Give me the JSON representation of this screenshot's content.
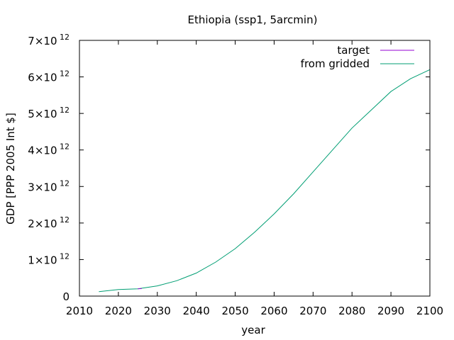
{
  "chart_data": {
    "type": "line",
    "title": "Ethiopia (ssp1, 5arcmin)",
    "xlabel": "year",
    "ylabel": "GDP [PPP 2005 Int $]",
    "xlim": [
      2010,
      2100
    ],
    "ylim": [
      0,
      7000000000000.0
    ],
    "x_ticks": [
      "2010",
      "2020",
      "2030",
      "2040",
      "2050",
      "2060",
      "2070",
      "2080",
      "2090",
      "2100"
    ],
    "y_ticks": [
      {
        "value": 0,
        "mant": "0",
        "exp": ""
      },
      {
        "value": 1000000000000.0,
        "mant": "1×10",
        "exp": "12"
      },
      {
        "value": 2000000000000.0,
        "mant": "2×10",
        "exp": "12"
      },
      {
        "value": 3000000000000.0,
        "mant": "3×10",
        "exp": "12"
      },
      {
        "value": 4000000000000.0,
        "mant": "4×10",
        "exp": "12"
      },
      {
        "value": 5000000000000.0,
        "mant": "5×10",
        "exp": "12"
      },
      {
        "value": 6000000000000.0,
        "mant": "6×10",
        "exp": "12"
      },
      {
        "value": 7000000000000.0,
        "mant": "7×10",
        "exp": "12"
      }
    ],
    "legend_position": "top-right",
    "grid": false,
    "series": [
      {
        "name": "target",
        "color": "#9400d3",
        "x": [
          2025,
          2026
        ],
        "y": [
          200000000000.0,
          205000000000.0
        ]
      },
      {
        "name": "from gridded",
        "color": "#009e73",
        "x": [
          2015,
          2020,
          2025,
          2030,
          2035,
          2040,
          2045,
          2050,
          2055,
          2060,
          2065,
          2070,
          2075,
          2080,
          2085,
          2090,
          2095,
          2100
        ],
        "y": [
          120000000000.0,
          180000000000.0,
          200000000000.0,
          280000000000.0,
          420000000000.0,
          630000000000.0,
          930000000000.0,
          1300000000000.0,
          1750000000000.0,
          2250000000000.0,
          2800000000000.0,
          3400000000000.0,
          4000000000000.0,
          4600000000000.0,
          5100000000000.0,
          5600000000000.0,
          5950000000000.0,
          6200000000000.0
        ]
      }
    ]
  }
}
